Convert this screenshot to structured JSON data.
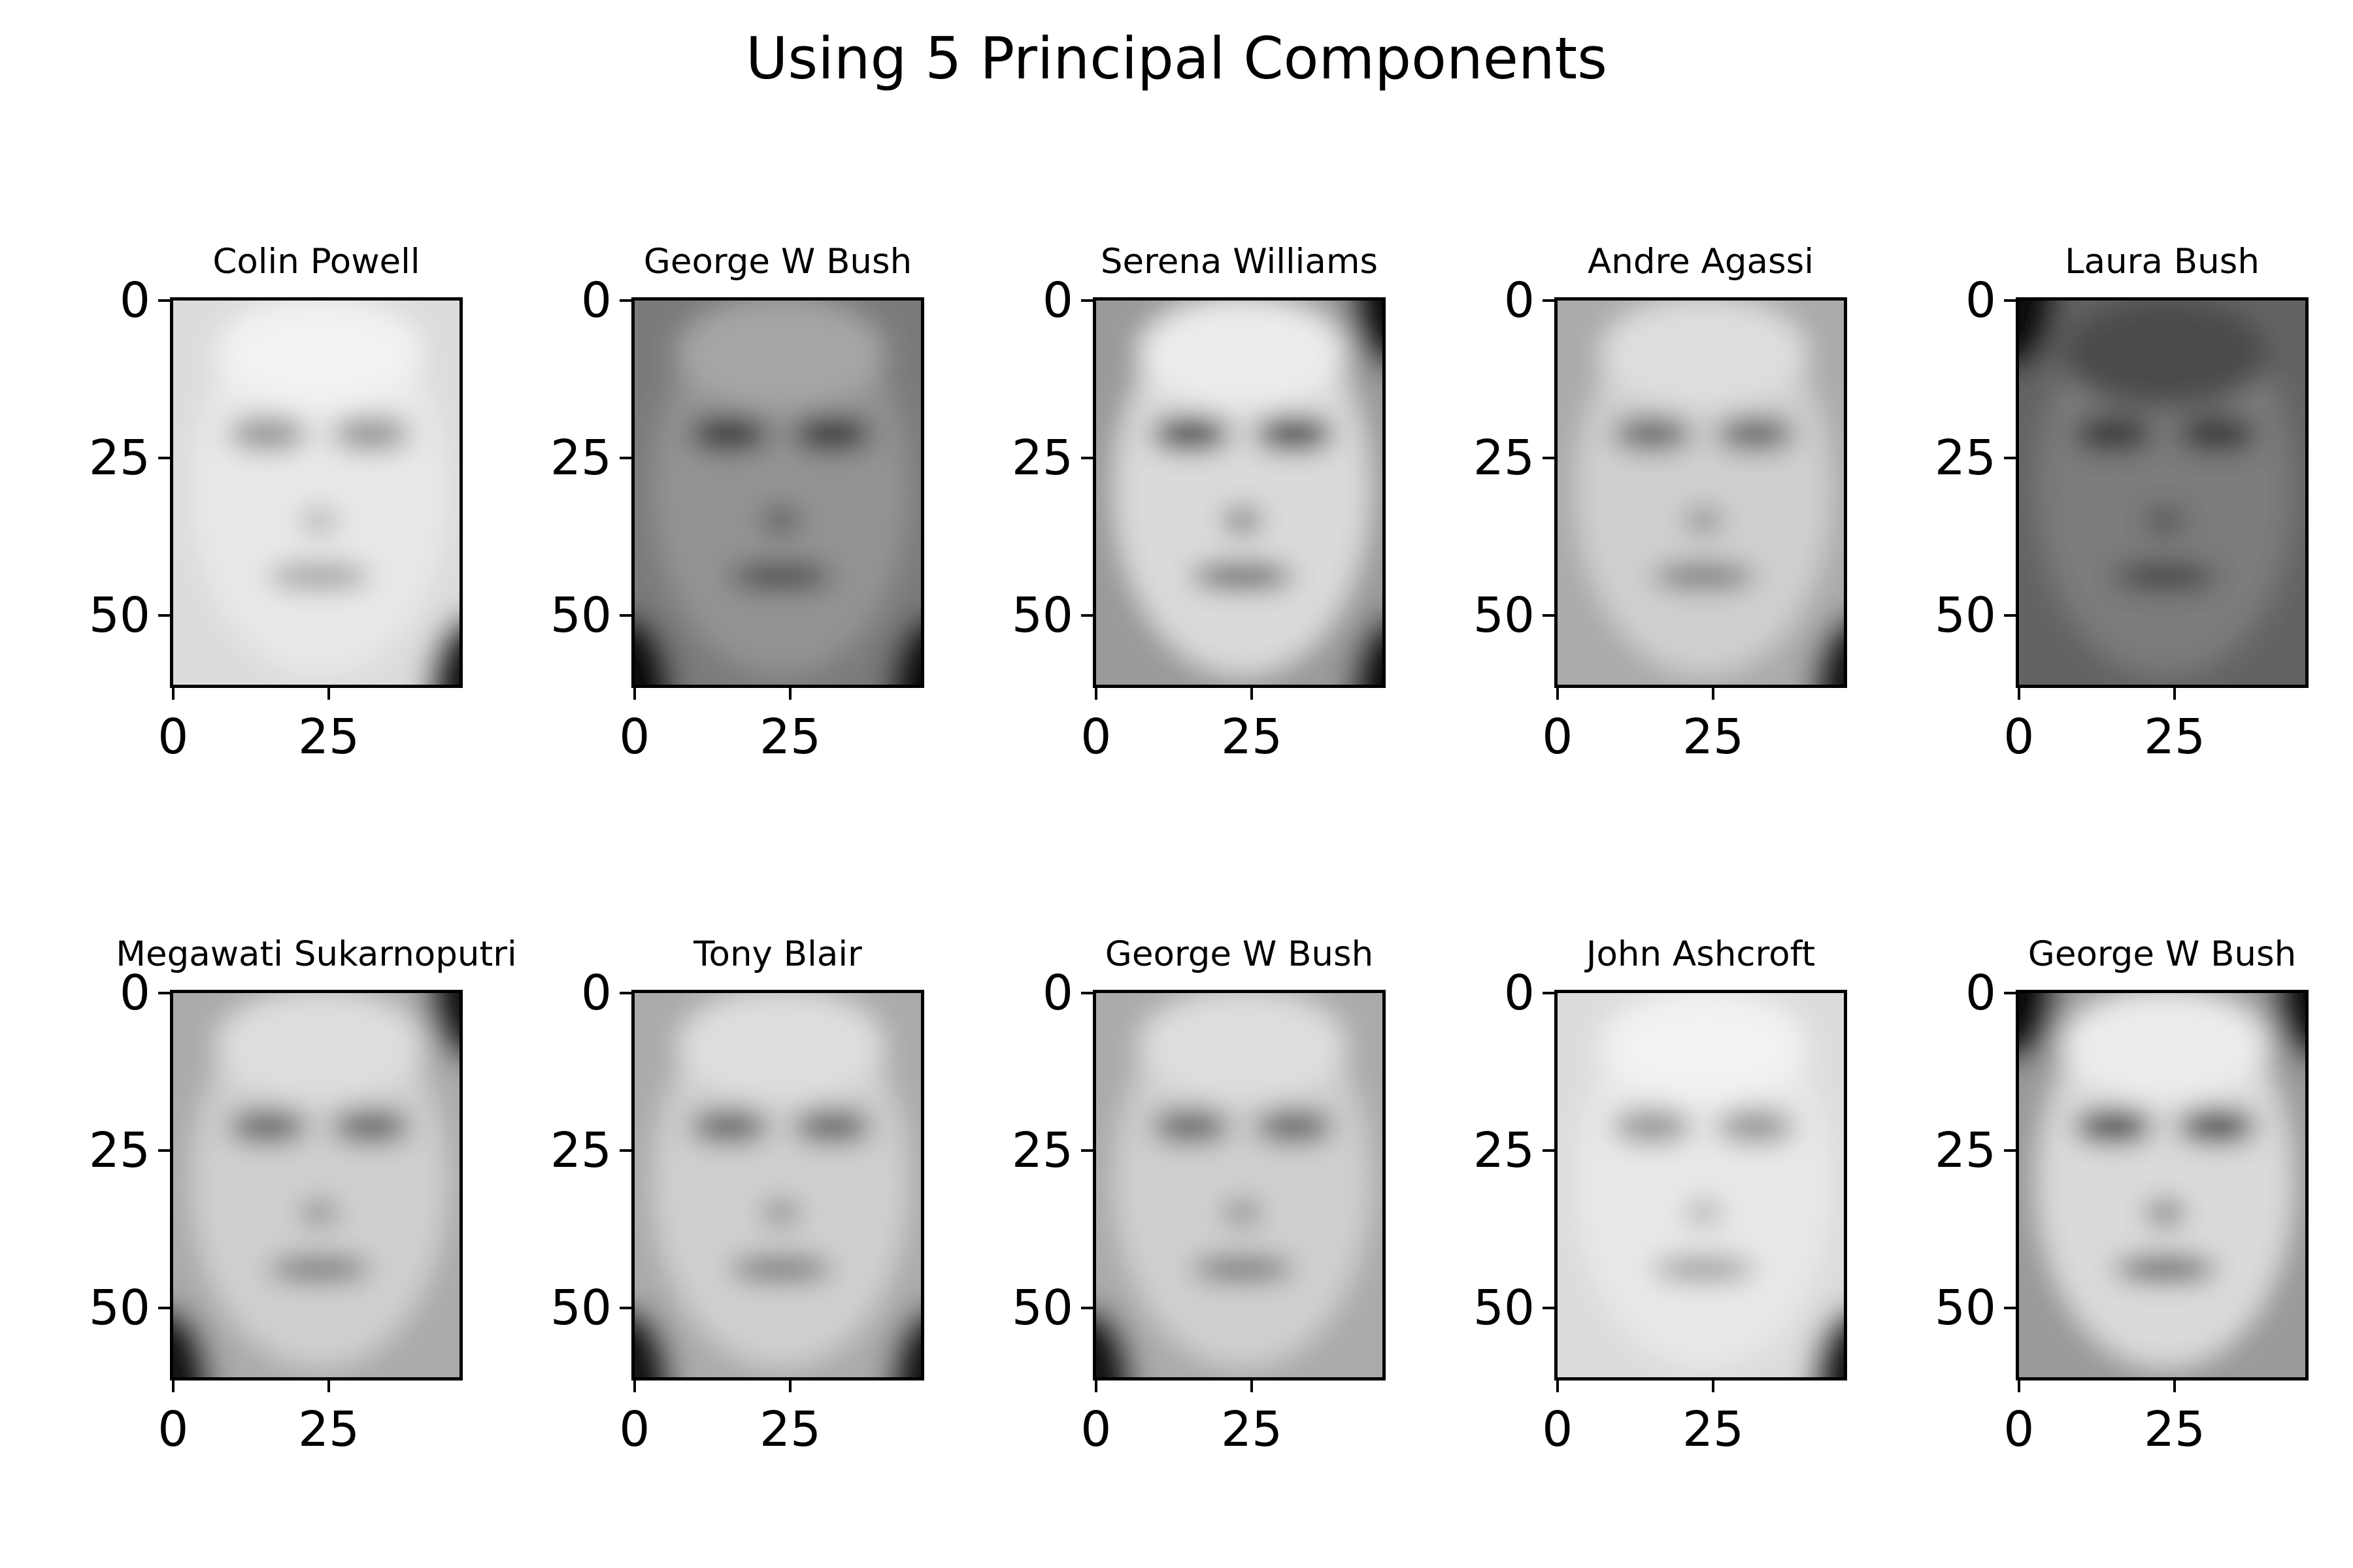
{
  "suptitle": "Using 5 Principal Components",
  "chart_data": {
    "type": "heatmap",
    "colormap": "gray",
    "image_shape": [
      62,
      47
    ],
    "xticks": [
      0,
      25
    ],
    "yticks": [
      0,
      25,
      50
    ],
    "xlim": [
      -0.5,
      46.5
    ],
    "ylim": [
      61.5,
      -0.5
    ],
    "grid": false,
    "panels": [
      {
        "title": "Colin Powell",
        "tone": "light",
        "dark_corners": [
          "br"
        ]
      },
      {
        "title": "George W Bush",
        "tone": "dark",
        "dark_corners": [
          "bl",
          "br"
        ]
      },
      {
        "title": "Serena Williams",
        "tone": "contrast",
        "dark_corners": [
          "tr",
          "br"
        ]
      },
      {
        "title": "Andre Agassi",
        "tone": "mid",
        "dark_corners": [
          "br"
        ]
      },
      {
        "title": "Laura Bush",
        "tone": "very_dark",
        "dark_corners": [
          "tl"
        ]
      },
      {
        "title": "Megawati Sukarnoputri",
        "tone": "mid",
        "dark_corners": [
          "tr",
          "bl"
        ]
      },
      {
        "title": "Tony Blair",
        "tone": "mid",
        "dark_corners": [
          "bl",
          "br"
        ]
      },
      {
        "title": "George W Bush",
        "tone": "mid",
        "dark_corners": [
          "bl"
        ]
      },
      {
        "title": "John Ashcroft",
        "tone": "light",
        "dark_corners": [
          "br"
        ]
      },
      {
        "title": "George W Bush",
        "tone": "contrast",
        "dark_corners": [
          "tl",
          "tr"
        ]
      }
    ]
  }
}
